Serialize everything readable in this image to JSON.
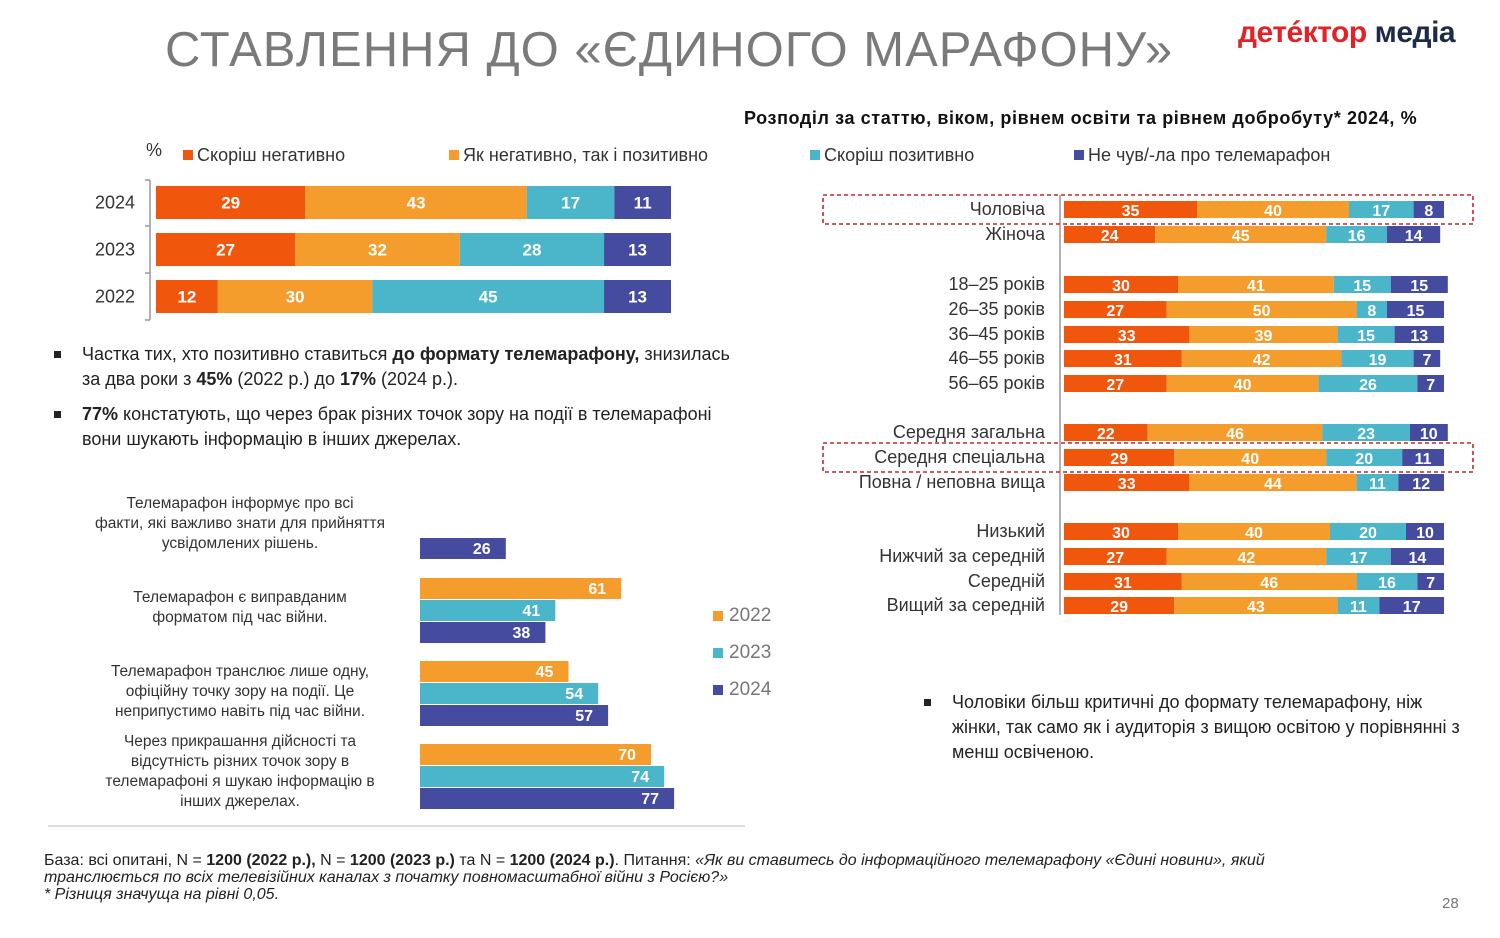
{
  "title": "СТАВЛЕННЯ ДО «ЄДИНОГО МАРАФОНУ»",
  "logo": {
    "part1": "детéктор",
    "part2": "медіа"
  },
  "right_title": "Розподіл за статтю, віком, рівнем освіти та рівнем добробуту* 2024, %",
  "pct_label": "%",
  "colors": {
    "neg": "#f0560c",
    "mixed": "#f59d2c",
    "pos": "#4bb5c9",
    "none": "#454b9e",
    "y2022": "#f59d2c",
    "y2023": "#4bb5c9",
    "y2024": "#454b9e"
  },
  "legend": [
    {
      "key": "neg",
      "label": "Скоріш негативно"
    },
    {
      "key": "mixed",
      "label": "Як негативно, так і позитивно"
    },
    {
      "key": "pos",
      "label": "Скоріш позитивно"
    },
    {
      "key": "none",
      "label": "Не чув/-ла про телемарафон"
    }
  ],
  "bullets_left": [
    {
      "parts": [
        {
          "t": "Частка тих, хто позитивно ставиться ",
          "b": false
        },
        {
          "t": "до формату телемарафону,",
          "b": true
        },
        {
          "t": " знизилась за два роки з ",
          "b": false
        },
        {
          "t": "45%",
          "b": true
        },
        {
          "t": " (2022 р.) до ",
          "b": false
        },
        {
          "t": "17%",
          "b": true
        },
        {
          "t": " (2024 р.).",
          "b": false
        }
      ]
    },
    {
      "parts": [
        {
          "t": "77%",
          "b": true
        },
        {
          "t": " констатують, що через брак різних точок зору на події в телемарафоні вони шукають інформацію в інших джерелах.",
          "b": false
        }
      ]
    }
  ],
  "bullet_right": "Чоловіки більш критичні до формату телемарафону, ніж жінки, так само як і аудиторія з вищою освітою у порівнянні з менш освіченою.",
  "footer": {
    "line1_parts": [
      {
        "t": "База: всі опитані, N = ",
        "b": false,
        "i": false
      },
      {
        "t": "1200 (2022 р.),",
        "b": true,
        "i": false
      },
      {
        "t": " N = ",
        "b": false,
        "i": false
      },
      {
        "t": "1200 (2023 р.)",
        "b": true,
        "i": false
      },
      {
        "t": " та N = ",
        "b": false,
        "i": false
      },
      {
        "t": "1200 (2024 р.)",
        "b": true,
        "i": false
      },
      {
        "t": ". Питання: ",
        "b": false,
        "i": false
      },
      {
        "t": "«Як ви ставитесь до інформаційного телемарафону «Єдині новини», який транслюється по всіх телевізійних каналах з початку повномасштабної війни з Росією?»",
        "b": false,
        "i": true
      }
    ],
    "line2": "* Різниця значуща на рівні 0,05."
  },
  "page_number": "28",
  "year_legend": [
    "2022",
    "2023",
    "2024"
  ],
  "chart_data": [
    {
      "type": "bar",
      "orientation": "horizontal-stacked",
      "categories": [
        "2024",
        "2023",
        "2022"
      ],
      "series": [
        {
          "name": "Скоріш негативно",
          "values": [
            29,
            27,
            12
          ]
        },
        {
          "name": "Як негативно, так і позитивно",
          "values": [
            43,
            32,
            30
          ]
        },
        {
          "name": "Скоріш позитивно",
          "values": [
            17,
            28,
            45
          ]
        },
        {
          "name": "Не чув/-ла про телемарафон",
          "values": [
            11,
            13,
            13
          ]
        }
      ]
    },
    {
      "type": "bar",
      "orientation": "horizontal-grouped",
      "categories": [
        "Телемарафон інформує про всі факти, які важливо знати для прийняття усвідомлених рішень.",
        "Телемарафон є виправданим форматом під час війни.",
        "Телемарафон транслює лише одну, офіційну точку зору на події. Це неприпустимо навіть під час війни.",
        "Через прикрашання дійсності та відсутність різних точок зору в телемарафоні я шукаю інформацію в інших джерелах."
      ],
      "series": [
        {
          "name": "2022",
          "values": [
            null,
            61,
            45,
            70
          ]
        },
        {
          "name": "2023",
          "values": [
            null,
            41,
            54,
            74
          ]
        },
        {
          "name": "2024",
          "values": [
            26,
            38,
            57,
            77
          ]
        }
      ]
    },
    {
      "type": "bar",
      "orientation": "horizontal-stacked",
      "title": "Розподіл за статтю, віком, рівнем освіти та рівнем добробуту* 2024, %",
      "groups": [
        {
          "rows": [
            {
              "label": "Чоловіча",
              "values": [
                35,
                40,
                17,
                8
              ],
              "highlight": true
            },
            {
              "label": "Жіноча",
              "values": [
                24,
                45,
                16,
                14
              ]
            }
          ]
        },
        {
          "rows": [
            {
              "label": "18–25 років",
              "values": [
                30,
                41,
                15,
                15
              ]
            },
            {
              "label": "26–35 років",
              "values": [
                27,
                50,
                8,
                15
              ]
            },
            {
              "label": "36–45 років",
              "values": [
                33,
                39,
                15,
                13
              ]
            },
            {
              "label": "46–55 років",
              "values": [
                31,
                42,
                19,
                7
              ]
            },
            {
              "label": "56–65 років",
              "values": [
                27,
                40,
                26,
                7
              ]
            }
          ]
        },
        {
          "rows": [
            {
              "label": "Середня загальна",
              "values": [
                22,
                46,
                23,
                10
              ]
            },
            {
              "label": "Середня спеціальна",
              "values": [
                29,
                40,
                20,
                11
              ],
              "highlight": true
            },
            {
              "label": "Повна / неповна вища",
              "values": [
                33,
                44,
                11,
                12
              ]
            }
          ]
        },
        {
          "rows": [
            {
              "label": "Низький",
              "values": [
                30,
                40,
                20,
                10
              ]
            },
            {
              "label": "Нижчий за середній",
              "values": [
                27,
                42,
                17,
                14
              ]
            },
            {
              "label": "Середній",
              "values": [
                31,
                46,
                16,
                7
              ]
            },
            {
              "label": "Вищий за середній",
              "values": [
                29,
                43,
                11,
                17
              ]
            }
          ]
        }
      ],
      "series_names": [
        "Скоріш негативно",
        "Як негативно, так і позитивно",
        "Скоріш позитивно",
        "Не чув/-ла про телемарафон"
      ]
    }
  ]
}
